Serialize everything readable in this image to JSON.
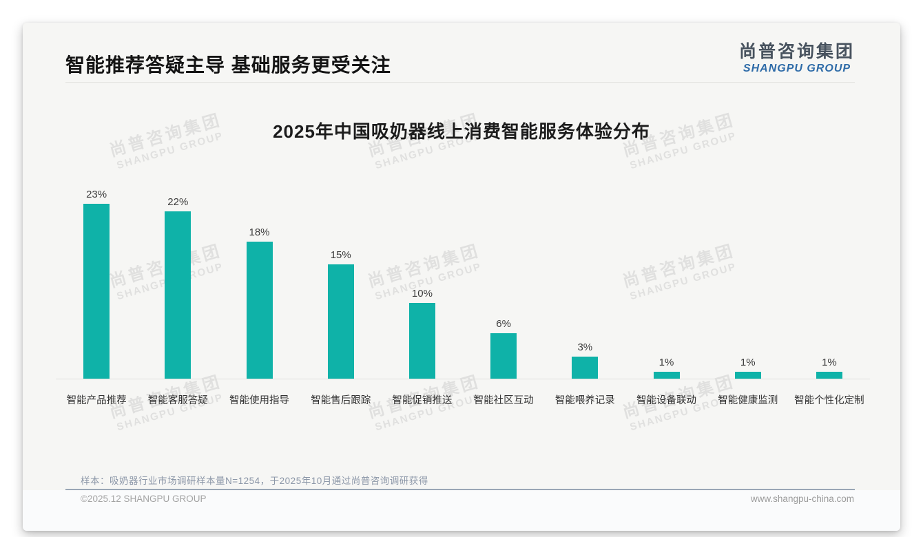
{
  "page": {
    "header_title": "智能推荐答疑主导 基础服务更受关注",
    "logo": {
      "cn": "尚普咨询集团",
      "en": "SHANGPU GROUP"
    },
    "watermark": {
      "cn": "尚普咨询集团",
      "en": "SHANGPU GROUP"
    },
    "footnote": "样本：吸奶器行业市场调研样本量N=1254，于2025年10月通过尚普咨询调研获得",
    "footer": {
      "left": "©2025.12 SHANGPU GROUP",
      "right": "www.shangpu-china.com"
    },
    "colors": {
      "bar": "#0fb2a8",
      "logo_blue": "#2e6ba8",
      "separator": "#9aa6b5"
    }
  },
  "chart_data": {
    "type": "bar",
    "title": "2025年中国吸奶器线上消费智能服务体验分布",
    "categories": [
      "智能产品推荐",
      "智能客服答疑",
      "智能使用指导",
      "智能售后跟踪",
      "智能促销推送",
      "智能社区互动",
      "智能喂养记录",
      "智能设备联动",
      "智能健康监测",
      "智能个性化定制"
    ],
    "values": [
      23,
      22,
      18,
      15,
      10,
      6,
      3,
      1,
      1,
      1
    ],
    "unit": "%",
    "bar_color": "#0fb2a8",
    "xlabel": "",
    "ylabel": "",
    "ylim": [
      0,
      25
    ],
    "grid": false,
    "legend": "none",
    "value_labels": "above-bars"
  }
}
